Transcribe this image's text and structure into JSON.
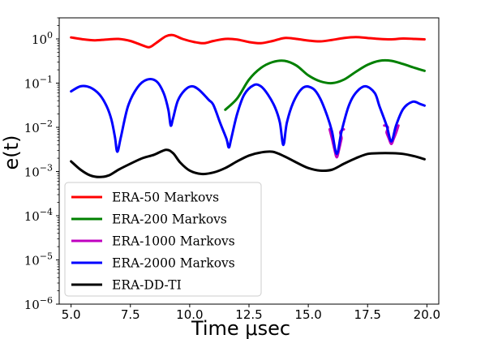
{
  "chart_data": {
    "type": "line",
    "title": "",
    "xlabel": "Time μsec",
    "ylabel": "e(t)",
    "y_scale": "log",
    "xlim": [
      4.5,
      20.5
    ],
    "ylim": [
      1e-06,
      3
    ],
    "grid": false,
    "legend_position": "bottom-left",
    "xticks": [
      {
        "value": 5.0,
        "label": "5.0"
      },
      {
        "value": 7.5,
        "label": "7.5"
      },
      {
        "value": 10.0,
        "label": "10.0"
      },
      {
        "value": 12.5,
        "label": "12.5"
      },
      {
        "value": 15.0,
        "label": "15.0"
      },
      {
        "value": 17.5,
        "label": "17.5"
      },
      {
        "value": 20.0,
        "label": "20.0"
      }
    ],
    "yticks": [
      {
        "value": 1e-06,
        "base": "10",
        "exp": "−6"
      },
      {
        "value": 1e-05,
        "base": "10",
        "exp": "−5"
      },
      {
        "value": 0.0001,
        "base": "10",
        "exp": "−4"
      },
      {
        "value": 0.001,
        "base": "10",
        "exp": "−3"
      },
      {
        "value": 0.01,
        "base": "10",
        "exp": "−2"
      },
      {
        "value": 0.1,
        "base": "10",
        "exp": "−1"
      },
      {
        "value": 1,
        "base": "10",
        "exp": "0"
      }
    ],
    "series": [
      {
        "name": "ERA-50 Markovs",
        "color": "#ff0000",
        "x": [
          5.0,
          5.5,
          6.0,
          6.5,
          7.0,
          7.5,
          8.0,
          8.3,
          8.6,
          9.0,
          9.3,
          9.7,
          10.2,
          10.6,
          11.0,
          11.5,
          12.0,
          12.5,
          13.0,
          13.5,
          14.0,
          14.5,
          15.0,
          15.5,
          16.0,
          16.5,
          17.0,
          17.5,
          18.0,
          18.5,
          19.0,
          19.5,
          19.9
        ],
        "y": [
          1.08,
          0.98,
          0.93,
          0.97,
          1.0,
          0.9,
          0.72,
          0.65,
          0.82,
          1.15,
          1.22,
          1.0,
          0.85,
          0.8,
          0.9,
          1.0,
          0.97,
          0.85,
          0.8,
          0.9,
          1.05,
          1.0,
          0.92,
          0.88,
          0.95,
          1.05,
          1.1,
          1.05,
          1.0,
          0.98,
          1.02,
          1.0,
          0.98
        ]
      },
      {
        "name": "ERA-200 Markovs",
        "color": "#008000",
        "x": [
          11.5,
          12.0,
          12.5,
          13.0,
          13.5,
          14.0,
          14.5,
          15.0,
          15.5,
          16.0,
          16.5,
          17.0,
          17.5,
          18.0,
          18.5,
          19.0,
          19.5,
          19.9
        ],
        "y": [
          0.025,
          0.045,
          0.12,
          0.22,
          0.3,
          0.32,
          0.25,
          0.15,
          0.11,
          0.1,
          0.12,
          0.18,
          0.26,
          0.32,
          0.32,
          0.27,
          0.22,
          0.19
        ]
      },
      {
        "name": "ERA-1000 Markovs",
        "color": "#bf00bf",
        "x": [
          15.9,
          16.0,
          16.1,
          16.2,
          16.3,
          16.4,
          16.5,
          18.2,
          18.3,
          18.4,
          18.5,
          18.6,
          18.7,
          18.8
        ],
        "y": [
          0.009,
          0.0055,
          0.0032,
          0.0021,
          0.0032,
          0.0055,
          0.009,
          0.011,
          0.0075,
          0.0055,
          0.0042,
          0.0055,
          0.0075,
          0.011
        ]
      },
      {
        "name": "ERA-2000 Markovs",
        "color": "#0000ff",
        "x": [
          5.0,
          5.4,
          5.8,
          6.2,
          6.5,
          6.7,
          6.85,
          6.95,
          7.1,
          7.4,
          7.8,
          8.2,
          8.6,
          8.9,
          9.1,
          9.2,
          9.3,
          9.5,
          9.8,
          10.1,
          10.4,
          10.8,
          11.0,
          11.3,
          11.55,
          11.65,
          11.75,
          12.0,
          12.3,
          12.7,
          13.0,
          13.3,
          13.6,
          13.8,
          13.95,
          14.1,
          14.4,
          14.8,
          15.2,
          15.5,
          15.8,
          16.0,
          16.2,
          16.4,
          16.7,
          17.0,
          17.4,
          17.8,
          18.0,
          18.3,
          18.5,
          18.7,
          19.0,
          19.4,
          19.7,
          19.9
        ],
        "y": [
          0.065,
          0.085,
          0.08,
          0.055,
          0.03,
          0.015,
          0.006,
          0.0028,
          0.006,
          0.03,
          0.08,
          0.12,
          0.11,
          0.06,
          0.025,
          0.011,
          0.016,
          0.04,
          0.07,
          0.085,
          0.07,
          0.042,
          0.032,
          0.012,
          0.0055,
          0.0035,
          0.0055,
          0.02,
          0.055,
          0.09,
          0.085,
          0.055,
          0.028,
          0.013,
          0.004,
          0.013,
          0.04,
          0.08,
          0.075,
          0.045,
          0.018,
          0.008,
          0.0025,
          0.008,
          0.03,
          0.06,
          0.085,
          0.06,
          0.03,
          0.011,
          0.0048,
          0.011,
          0.026,
          0.038,
          0.034,
          0.031
        ]
      },
      {
        "name": "ERA-DD-TI",
        "color": "#000000",
        "x": [
          5.0,
          5.4,
          5.8,
          6.2,
          6.6,
          7.0,
          7.5,
          8.0,
          8.5,
          9.0,
          9.3,
          9.6,
          10.0,
          10.5,
          11.0,
          11.5,
          12.0,
          12.5,
          13.0,
          13.5,
          14.0,
          14.5,
          15.0,
          15.5,
          16.0,
          16.5,
          17.0,
          17.5,
          18.0,
          18.5,
          19.0,
          19.5,
          19.9
        ],
        "y": [
          0.0017,
          0.0011,
          0.00082,
          0.00075,
          0.00082,
          0.0011,
          0.0015,
          0.002,
          0.0024,
          0.0031,
          0.0026,
          0.0016,
          0.00105,
          0.00088,
          0.00095,
          0.0012,
          0.0017,
          0.0023,
          0.0027,
          0.0028,
          0.0022,
          0.0016,
          0.0012,
          0.00105,
          0.0011,
          0.0015,
          0.002,
          0.0025,
          0.0026,
          0.0026,
          0.0025,
          0.0022,
          0.0019
        ]
      }
    ]
  }
}
